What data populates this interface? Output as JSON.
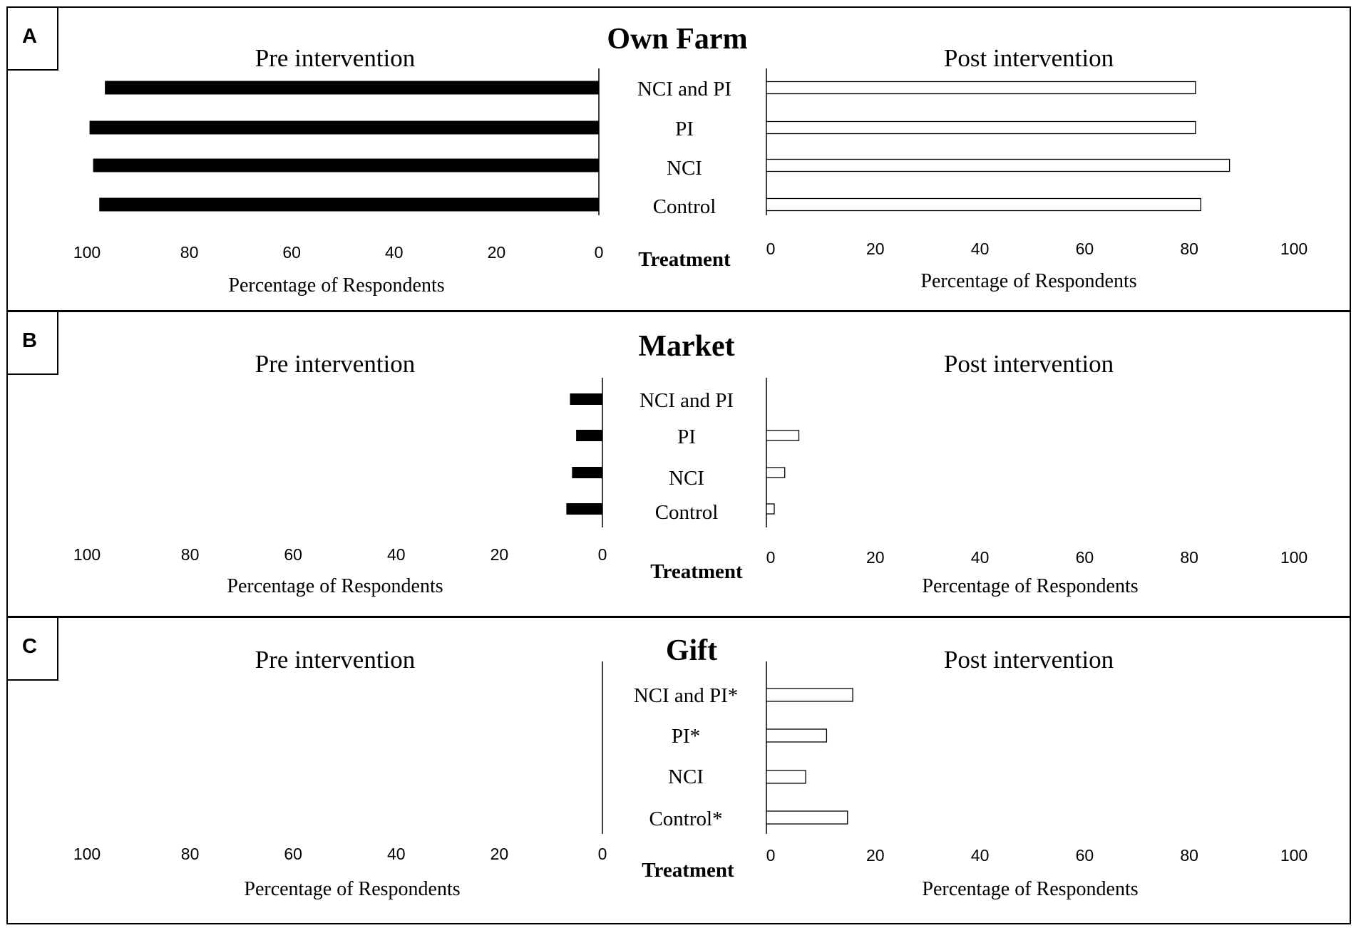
{
  "chart_data": [
    {
      "type": "bar",
      "panel_label": "A",
      "title": "Own Farm",
      "left_subtitle": "Pre intervention",
      "right_subtitle": "Post intervention",
      "center_label": "Treatment",
      "xlabel": "Percentage of Respondents",
      "xticks_left": [
        "100",
        "80",
        "60",
        "40",
        "20",
        "0"
      ],
      "xticks_right": [
        "0",
        "20",
        "40",
        "60",
        "80",
        "100"
      ],
      "xlim": [
        0,
        100
      ],
      "categories": [
        "NCI and PI",
        "PI",
        "NCI",
        "Control"
      ],
      "series": [
        {
          "name": "Pre intervention",
          "values": [
            96.5,
            99.5,
            98.8,
            97.6
          ],
          "color": "#000000"
        },
        {
          "name": "Post intervention",
          "values": [
            82,
            82,
            88.5,
            83
          ],
          "color": "#ffffff"
        }
      ]
    },
    {
      "type": "bar",
      "panel_label": "B",
      "title": "Market",
      "left_subtitle": "Pre intervention",
      "right_subtitle": "Post intervention",
      "center_label": "Treatment",
      "xlabel": "Percentage of Respondents",
      "xticks_left": [
        "100",
        "80",
        "60",
        "40",
        "20",
        "0"
      ],
      "xticks_right": [
        "0",
        "20",
        "40",
        "60",
        "80",
        "100"
      ],
      "xlim": [
        0,
        100
      ],
      "categories": [
        "NCI and PI",
        "PI",
        "NCI",
        "Control"
      ],
      "series": [
        {
          "name": "Pre intervention",
          "values": [
            6.3,
            5.1,
            5.9,
            7.0
          ],
          "color": "#000000"
        },
        {
          "name": "Post intervention",
          "values": [
            0,
            6.2,
            3.5,
            1.5
          ],
          "color": "#ffffff"
        }
      ]
    },
    {
      "type": "bar",
      "panel_label": "C",
      "title": "Gift",
      "left_subtitle": "Pre intervention",
      "right_subtitle": "Post intervention",
      "center_label": "Treatment",
      "xlabel": "Percentage of Respondents",
      "xticks_left": [
        "100",
        "80",
        "60",
        "40",
        "20",
        "0"
      ],
      "xticks_right": [
        "0",
        "20",
        "40",
        "60",
        "80",
        "100"
      ],
      "xlim": [
        0,
        100
      ],
      "categories": [
        "NCI and PI*",
        "PI*",
        "NCI",
        "Control*"
      ],
      "series": [
        {
          "name": "Pre intervention",
          "values": [
            0,
            0,
            0,
            0
          ],
          "color": "#000000"
        },
        {
          "name": "Post intervention",
          "values": [
            16.5,
            11.5,
            7.5,
            15.5
          ],
          "color": "#ffffff"
        }
      ]
    }
  ]
}
